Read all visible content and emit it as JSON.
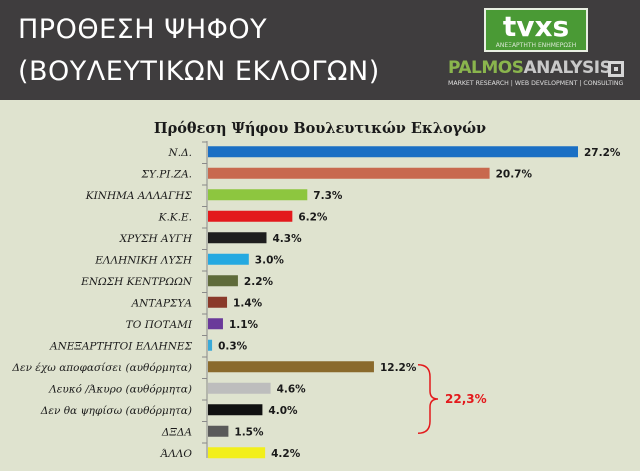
{
  "header": {
    "title_line1": "ΠΡΟΘΕΣΗ ΨΗΦΟΥ",
    "title_line2": "(ΒΟΥΛΕΥΤΙΚΩΝ ΕΚΛΟΓΩΝ)",
    "logo_tvxs": "tvxs",
    "logo_tvxs_sub": "ΑΝΕΞΑΡΤΗΤΗ ΕΝΗΜΕΡΩΣΗ",
    "logo_palmos_a": "PALMOS",
    "logo_palmos_b": "ANALYSIS",
    "logo_palmos_tagline": "MARKET RESEARCH | WEB DEVELOPMENT | CONSULTING"
  },
  "chart_data": {
    "type": "bar",
    "orientation": "horizontal",
    "title": "Πρόθεση Ψήφου Βουλευτικών Εκλογών",
    "categories": [
      "Ν.Δ.",
      "ΣΥ.ΡΙ.ΖΑ.",
      "ΚΙΝΗΜΑ ΑΛΛΑΓΗΣ",
      "Κ.Κ.Ε.",
      "ΧΡΥΣΗ ΑΥΓΗ",
      "ΕΛΛΗΝΙΚΗ ΛΥΣΗ",
      "ΕΝΩΣΗ ΚΕΝΤΡΩΩΝ",
      "ΑΝΤΑΡΣΥΑ",
      "ΤΟ ΠΟΤΑΜΙ",
      "ΑΝΕΞΑΡΤΗΤΟΙ ΕΛΛΗΝΕΣ",
      "Δεν έχω αποφασίσει (αυθόρμητα)",
      "Λευκό /Άκυρο (αυθόρμητα)",
      "Δεν θα ψηφίσω (αυθόρμητα)",
      "ΔΞΔΑ",
      "ΆΛΛΟ"
    ],
    "values": [
      27.2,
      20.7,
      7.3,
      6.2,
      4.3,
      3.0,
      2.2,
      1.4,
      1.1,
      0.3,
      12.2,
      4.6,
      4.0,
      1.5,
      4.2
    ],
    "value_labels": [
      "27.2%",
      "20.7%",
      "7.3%",
      "6.2%",
      "4.3%",
      "3.0%",
      "2.2%",
      "1.4%",
      "1.1%",
      "0.3%",
      "12.2%",
      "4.6%",
      "4.0%",
      "1.5%",
      "4.2%"
    ],
    "colors": [
      "#1a6fc4",
      "#c8694e",
      "#8dc63f",
      "#e3191c",
      "#1e1e1e",
      "#24a9e1",
      "#5f6b3a",
      "#8a3a2a",
      "#6a3a9a",
      "#3aaad8",
      "#8a6a2c",
      "#bdbdbd",
      "#111111",
      "#5a5a5a",
      "#f2ef1a"
    ],
    "annotation": {
      "text": "22,3%",
      "color": "#e3191c",
      "brace_from_category": "Δεν έχω αποφασίσει (αυθόρμητα)",
      "brace_to_category": "ΔΞΔΑ"
    },
    "xlim": [
      0,
      27.2
    ],
    "grid": false,
    "legend": "none"
  }
}
